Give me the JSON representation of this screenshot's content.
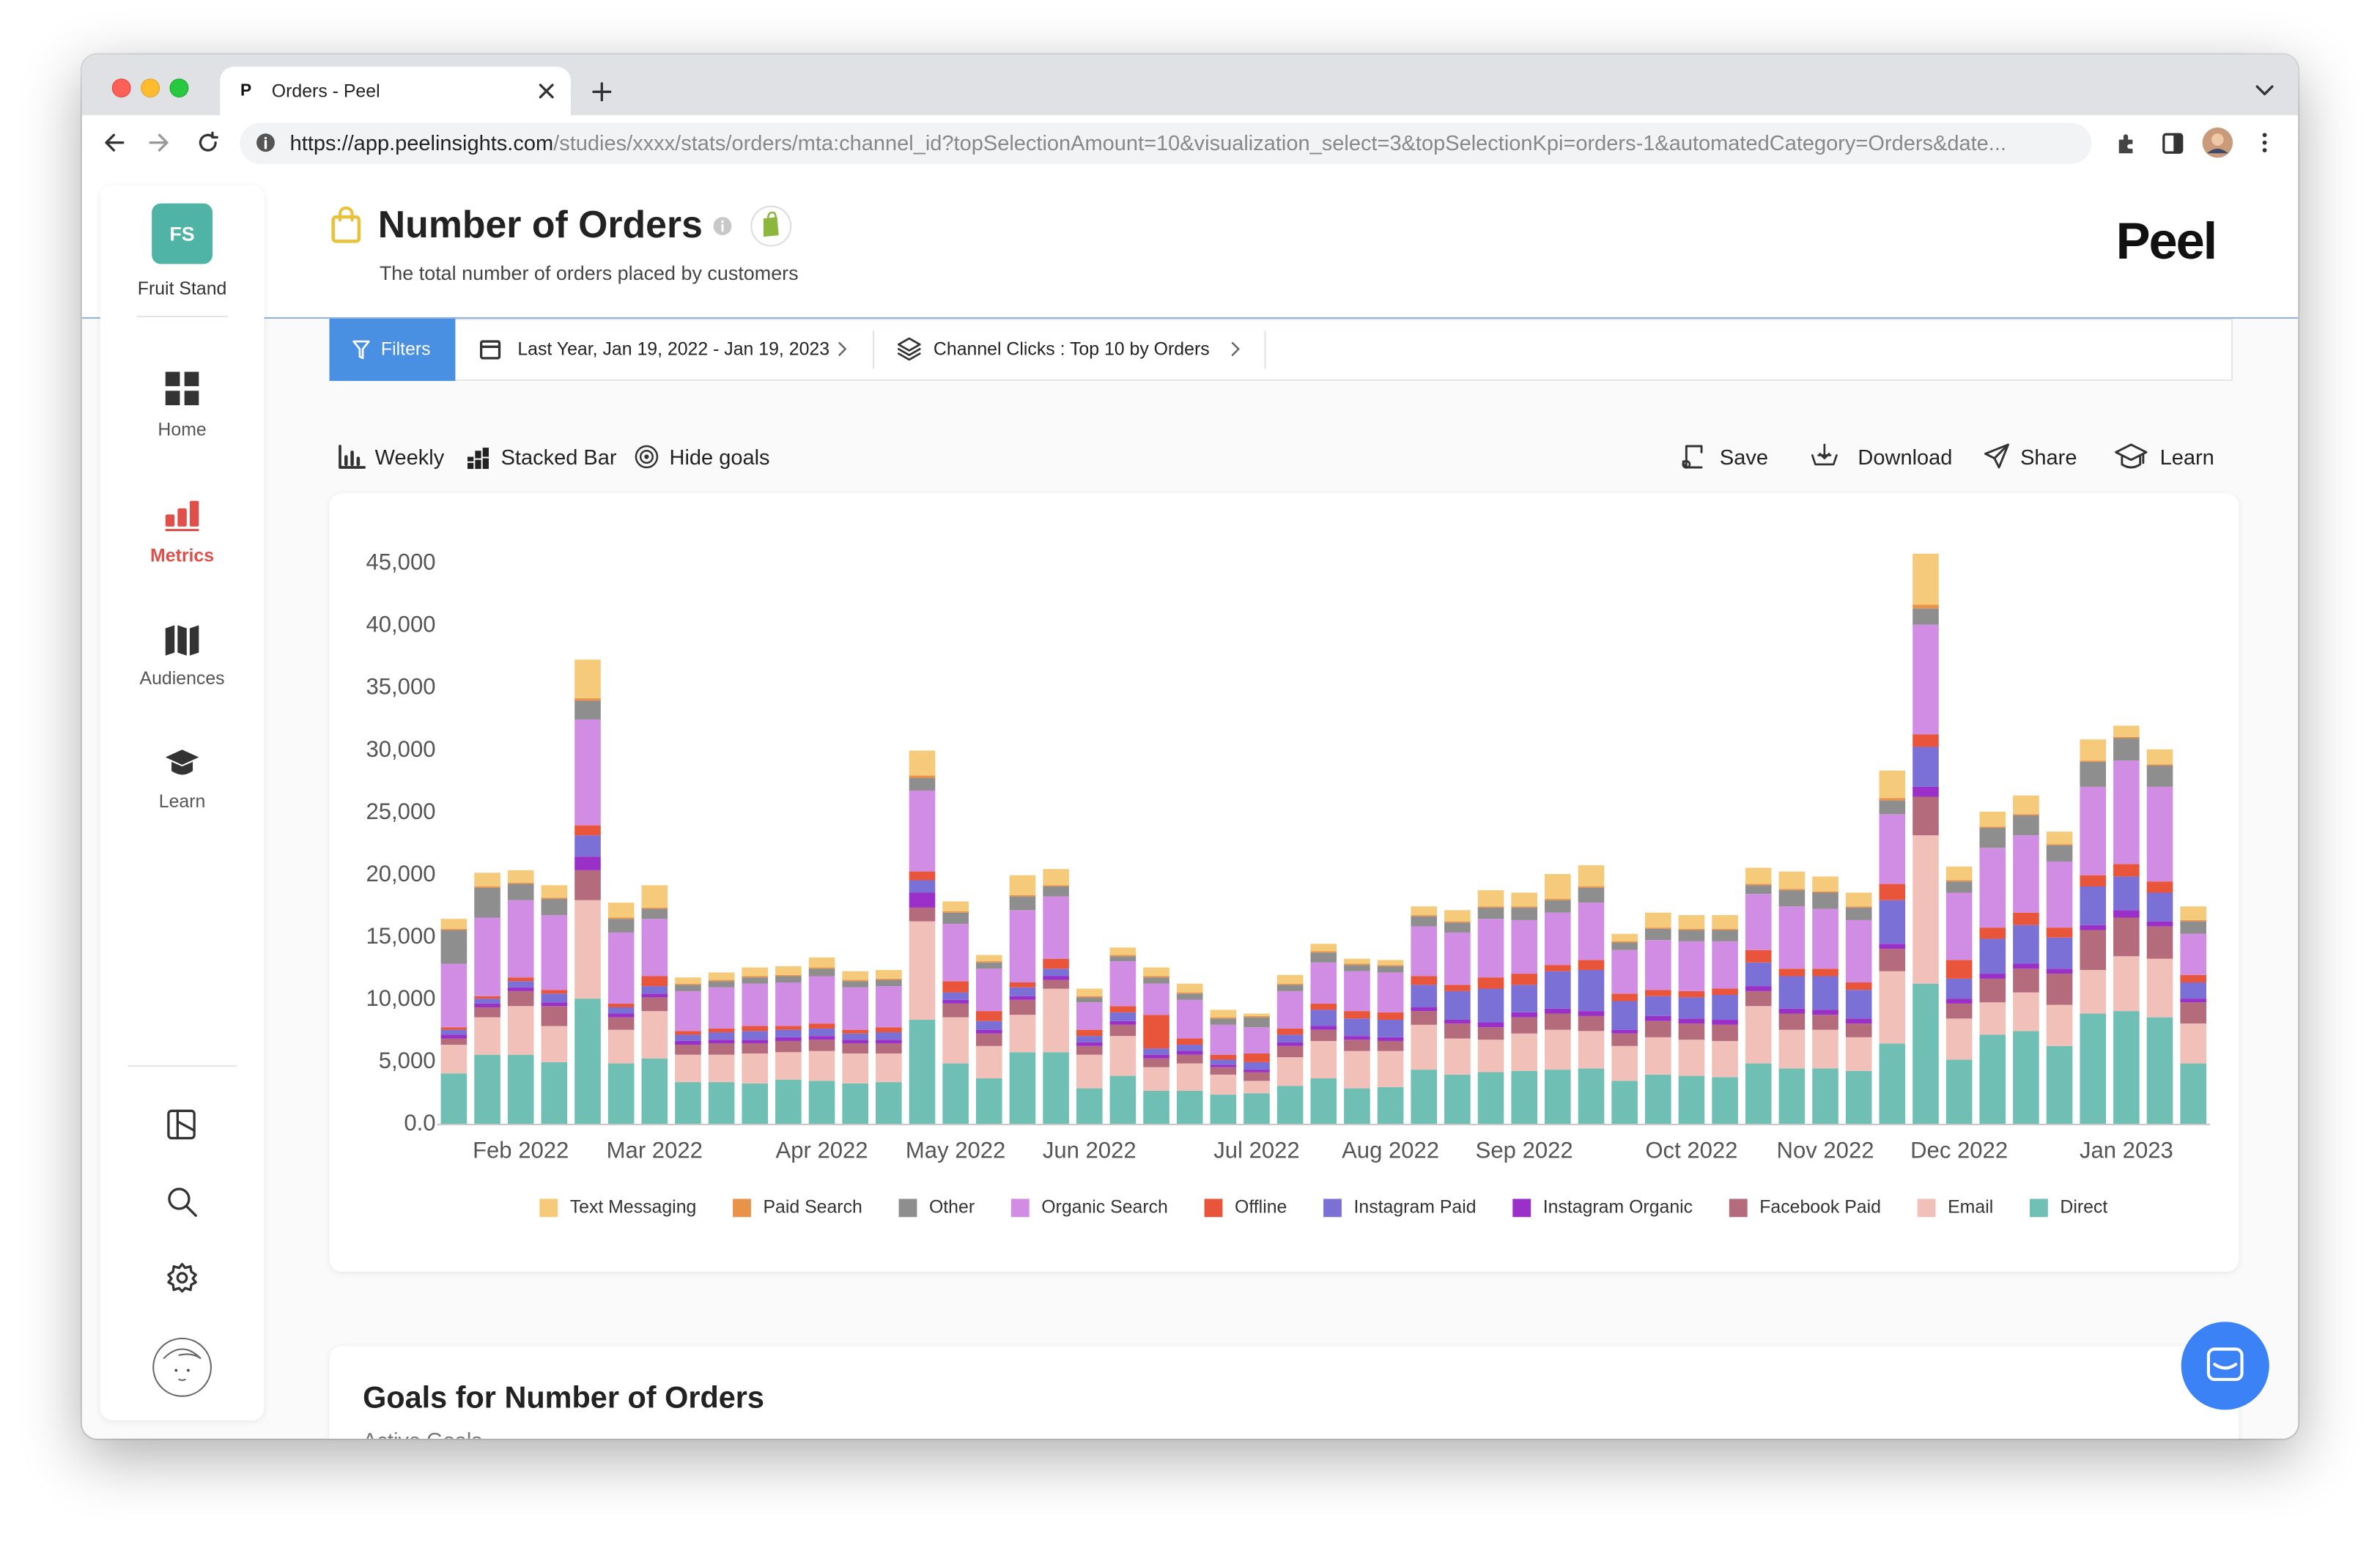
{
  "browser": {
    "favicon": "P",
    "tab_title": "Orders - Peel",
    "url_host": "https://app.peelinsights.com",
    "url_path": "/studies/xxxx/stats/orders/mta:channel_id?topSelectionAmount=10&visualization_select=3&topSelectionKpi=orders-1&automatedCategory=Orders&date..."
  },
  "sidebar": {
    "workspace_initials": "FS",
    "workspace_name": "Fruit Stand",
    "nav": [
      "Home",
      "Metrics",
      "Audiences",
      "Learn"
    ]
  },
  "header": {
    "title": "Number of Orders",
    "subtitle": "The total number of orders placed by customers",
    "logo": "Peel"
  },
  "filters": {
    "button": "Filters",
    "date_range": "Last Year, Jan 19, 2022 - Jan 19, 2023",
    "channel": "Channel Clicks : Top 10 by Orders"
  },
  "toolbar": {
    "interval": "Weekly",
    "chart_type": "Stacked Bar",
    "hide_goals": "Hide goals",
    "actions": [
      "Save",
      "Download",
      "Share",
      "Learn"
    ]
  },
  "goals": {
    "title": "Goals for Number of Orders",
    "subtitle": "Active Goals"
  },
  "chart_data": {
    "type": "bar",
    "stacked": true,
    "grid": false,
    "legend": "bottom",
    "categories": [
      null,
      null,
      "Feb 2022",
      null,
      null,
      null,
      "Mar 2022",
      null,
      null,
      null,
      null,
      "Apr 2022",
      null,
      null,
      null,
      "May 2022",
      null,
      null,
      null,
      "Jun 2022",
      null,
      null,
      null,
      null,
      "Jul 2022",
      null,
      null,
      null,
      "Aug 2022",
      null,
      null,
      null,
      "Sep 2022",
      null,
      null,
      null,
      null,
      "Oct 2022",
      null,
      null,
      null,
      "Nov 2022",
      null,
      null,
      null,
      "Dec 2022",
      null,
      null,
      null,
      null,
      "Jan 2023",
      null,
      null
    ],
    "ylim": [
      0,
      47000
    ],
    "yticks": [
      {
        "value": 0,
        "label": "0.0"
      },
      {
        "value": 5000,
        "label": "5,000"
      },
      {
        "value": 10000,
        "label": "10,000"
      },
      {
        "value": 15000,
        "label": "15,000"
      },
      {
        "value": 20000,
        "label": "20,000"
      },
      {
        "value": 25000,
        "label": "25,000"
      },
      {
        "value": 30000,
        "label": "30,000"
      },
      {
        "value": 35000,
        "label": "35,000"
      },
      {
        "value": 40000,
        "label": "40,000"
      },
      {
        "value": 45000,
        "label": "45,000"
      }
    ],
    "series": [
      {
        "name": "Text Messaging",
        "color": "#f5ca7b",
        "values": [
          800,
          1100,
          1000,
          1000,
          3100,
          1200,
          1800,
          500,
          600,
          700,
          700,
          800,
          700,
          700,
          2000,
          800,
          500,
          1600,
          1300,
          600,
          600,
          700,
          700,
          600,
          200,
          700,
          600,
          400,
          400,
          700,
          900,
          1300,
          1100,
          2000,
          1700,
          600,
          1200,
          1100,
          1100,
          1300,
          1400,
          1200,
          1100,
          2200,
          4100,
          1100,
          1200,
          1500,
          1000,
          1700,
          900,
          1200,
          1100
        ]
      },
      {
        "name": "Paid Search",
        "color": "#e8924a",
        "values": [
          100,
          100,
          100,
          100,
          200,
          100,
          100,
          100,
          100,
          100,
          100,
          100,
          100,
          100,
          200,
          100,
          100,
          100,
          100,
          100,
          100,
          100,
          100,
          100,
          100,
          100,
          100,
          100,
          100,
          100,
          100,
          100,
          100,
          100,
          100,
          100,
          100,
          100,
          100,
          100,
          100,
          100,
          100,
          200,
          300,
          100,
          100,
          100,
          100,
          100,
          100,
          100,
          100
        ]
      },
      {
        "name": "Other",
        "color": "#8e8e8e",
        "values": [
          2700,
          2400,
          1300,
          1300,
          1500,
          1100,
          800,
          500,
          500,
          500,
          500,
          600,
          500,
          500,
          1000,
          900,
          500,
          1100,
          800,
          400,
          400,
          500,
          500,
          500,
          800,
          500,
          800,
          500,
          500,
          800,
          800,
          900,
          1000,
          1000,
          1200,
          600,
          900,
          900,
          900,
          700,
          1300,
          1300,
          1000,
          1100,
          1300,
          900,
          1600,
          1600,
          1300,
          2000,
          1800,
          1700,
          1000
        ]
      },
      {
        "name": "Organic Search",
        "color": "#d18de4",
        "values": [
          5100,
          6300,
          6200,
          6000,
          8500,
          5700,
          4600,
          3200,
          3300,
          3400,
          3500,
          3800,
          3400,
          3300,
          6500,
          4600,
          3400,
          5800,
          5000,
          2200,
          3600,
          2500,
          3100,
          2400,
          2100,
          3000,
          3300,
          3200,
          3200,
          4000,
          4200,
          4700,
          4300,
          4200,
          4600,
          3500,
          4000,
          4000,
          3800,
          4500,
          5000,
          4800,
          5000,
          5600,
          8800,
          5400,
          6400,
          6200,
          5300,
          7100,
          8300,
          7600,
          3300
        ]
      },
      {
        "name": "Offline",
        "color": "#e8553b",
        "values": [
          200,
          200,
          300,
          300,
          800,
          300,
          800,
          300,
          300,
          400,
          300,
          400,
          300,
          400,
          700,
          900,
          800,
          400,
          800,
          500,
          500,
          2700,
          500,
          400,
          700,
          500,
          500,
          600,
          600,
          700,
          500,
          900,
          900,
          500,
          800,
          600,
          500,
          500,
          500,
          1000,
          600,
          600,
          600,
          1300,
          1000,
          1500,
          900,
          1000,
          800,
          900,
          1000,
          900,
          600
        ]
      },
      {
        "name": "Instagram Paid",
        "color": "#7b70d6",
        "values": [
          400,
          400,
          500,
          700,
          1700,
          500,
          600,
          500,
          600,
          700,
          600,
          600,
          500,
          600,
          1000,
          600,
          700,
          700,
          600,
          500,
          700,
          500,
          500,
          400,
          600,
          600,
          1300,
          1400,
          1400,
          1800,
          2300,
          2700,
          2200,
          3000,
          3300,
          2300,
          1600,
          1700,
          2000,
          1900,
          2600,
          2700,
          2300,
          3500,
          3200,
          1600,
          2800,
          3100,
          2500,
          3100,
          2700,
          2300,
          1300
        ]
      },
      {
        "name": "Instagram Organic",
        "color": "#9b30c8",
        "values": [
          300,
          300,
          300,
          300,
          1100,
          300,
          300,
          300,
          300,
          300,
          300,
          300,
          300,
          300,
          1200,
          300,
          300,
          300,
          300,
          300,
          300,
          300,
          300,
          200,
          200,
          300,
          300,
          300,
          300,
          300,
          300,
          400,
          400,
          400,
          400,
          300,
          400,
          400,
          400,
          400,
          400,
          400,
          400,
          400,
          800,
          400,
          400,
          400,
          400,
          400,
          600,
          400,
          300
        ]
      },
      {
        "name": "Facebook Paid",
        "color": "#b46b7b",
        "values": [
          500,
          800,
          1200,
          1600,
          2400,
          1000,
          1100,
          800,
          900,
          800,
          900,
          900,
          800,
          800,
          1100,
          1100,
          1000,
          1200,
          700,
          700,
          900,
          700,
          700,
          600,
          700,
          900,
          900,
          900,
          800,
          1100,
          1200,
          1000,
          1300,
          1300,
          1200,
          1000,
          1300,
          1300,
          1300,
          1200,
          1300,
          1200,
          1100,
          1800,
          3100,
          1200,
          1900,
          1900,
          2500,
          3200,
          3100,
          2600,
          1700
        ]
      },
      {
        "name": "Email",
        "color": "#f1c1b9",
        "values": [
          2300,
          3000,
          3900,
          2900,
          7900,
          2700,
          3800,
          2200,
          2200,
          2400,
          2200,
          2400,
          2400,
          2300,
          7900,
          3700,
          2600,
          3000,
          5100,
          2700,
          3200,
          1900,
          2200,
          1600,
          1000,
          2300,
          3000,
          3000,
          2900,
          3600,
          2900,
          2600,
          3000,
          3200,
          3000,
          2800,
          3000,
          2900,
          2900,
          4600,
          3100,
          3100,
          2700,
          5800,
          11900,
          3300,
          2600,
          3100,
          3300,
          3500,
          4400,
          4700,
          3200
        ]
      },
      {
        "name": "Direct",
        "color": "#70bfb5",
        "values": [
          4100,
          5600,
          5600,
          5000,
          10100,
          4900,
          5300,
          3400,
          3400,
          3300,
          3600,
          3500,
          3300,
          3400,
          8400,
          4900,
          3700,
          5800,
          5800,
          2900,
          3900,
          2700,
          2700,
          2400,
          2500,
          3100,
          3700,
          2900,
          3000,
          4400,
          4000,
          4200,
          4300,
          4400,
          4500,
          3500,
          4000,
          3900,
          3800,
          4900,
          4500,
          4500,
          4300,
          6500,
          11300,
          5200,
          7200,
          7500,
          6300,
          8900,
          9100,
          8600,
          4900
        ]
      }
    ]
  }
}
